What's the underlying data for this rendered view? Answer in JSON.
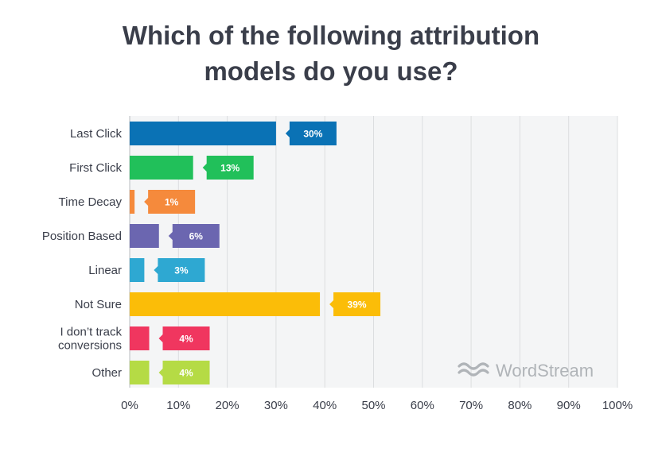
{
  "chart_data": {
    "type": "bar",
    "orientation": "horizontal",
    "title_lines": [
      "Which of the following attribution",
      "models do you use?"
    ],
    "categories": [
      [
        "Last Click"
      ],
      [
        "First Click"
      ],
      [
        "Time Decay"
      ],
      [
        "Position Based"
      ],
      [
        "Linear"
      ],
      [
        "Not Sure"
      ],
      [
        "I don’t track",
        "conversions"
      ],
      [
        "Other"
      ]
    ],
    "values": [
      30,
      13,
      1,
      6,
      3,
      39,
      4,
      4
    ],
    "data_labels": [
      "30%",
      "13%",
      "1%",
      "6%",
      "3%",
      "39%",
      "4%",
      "4%"
    ],
    "colors": [
      "#0a72b5",
      "#21c05a",
      "#f58a3c",
      "#6b66b0",
      "#2ea8d2",
      "#fbbd08",
      "#f0365f",
      "#b5db45"
    ],
    "xlim": [
      0,
      100
    ],
    "xticks": [
      0,
      10,
      20,
      30,
      40,
      50,
      60,
      70,
      80,
      90,
      100
    ],
    "xtick_labels": [
      "0%",
      "10%",
      "20%",
      "30%",
      "40%",
      "50%",
      "60%",
      "70%",
      "80%",
      "90%",
      "100%"
    ],
    "grid": true,
    "legend": "none"
  },
  "brand": {
    "name": "WordStream",
    "icon": "wordstream-waves-icon"
  }
}
